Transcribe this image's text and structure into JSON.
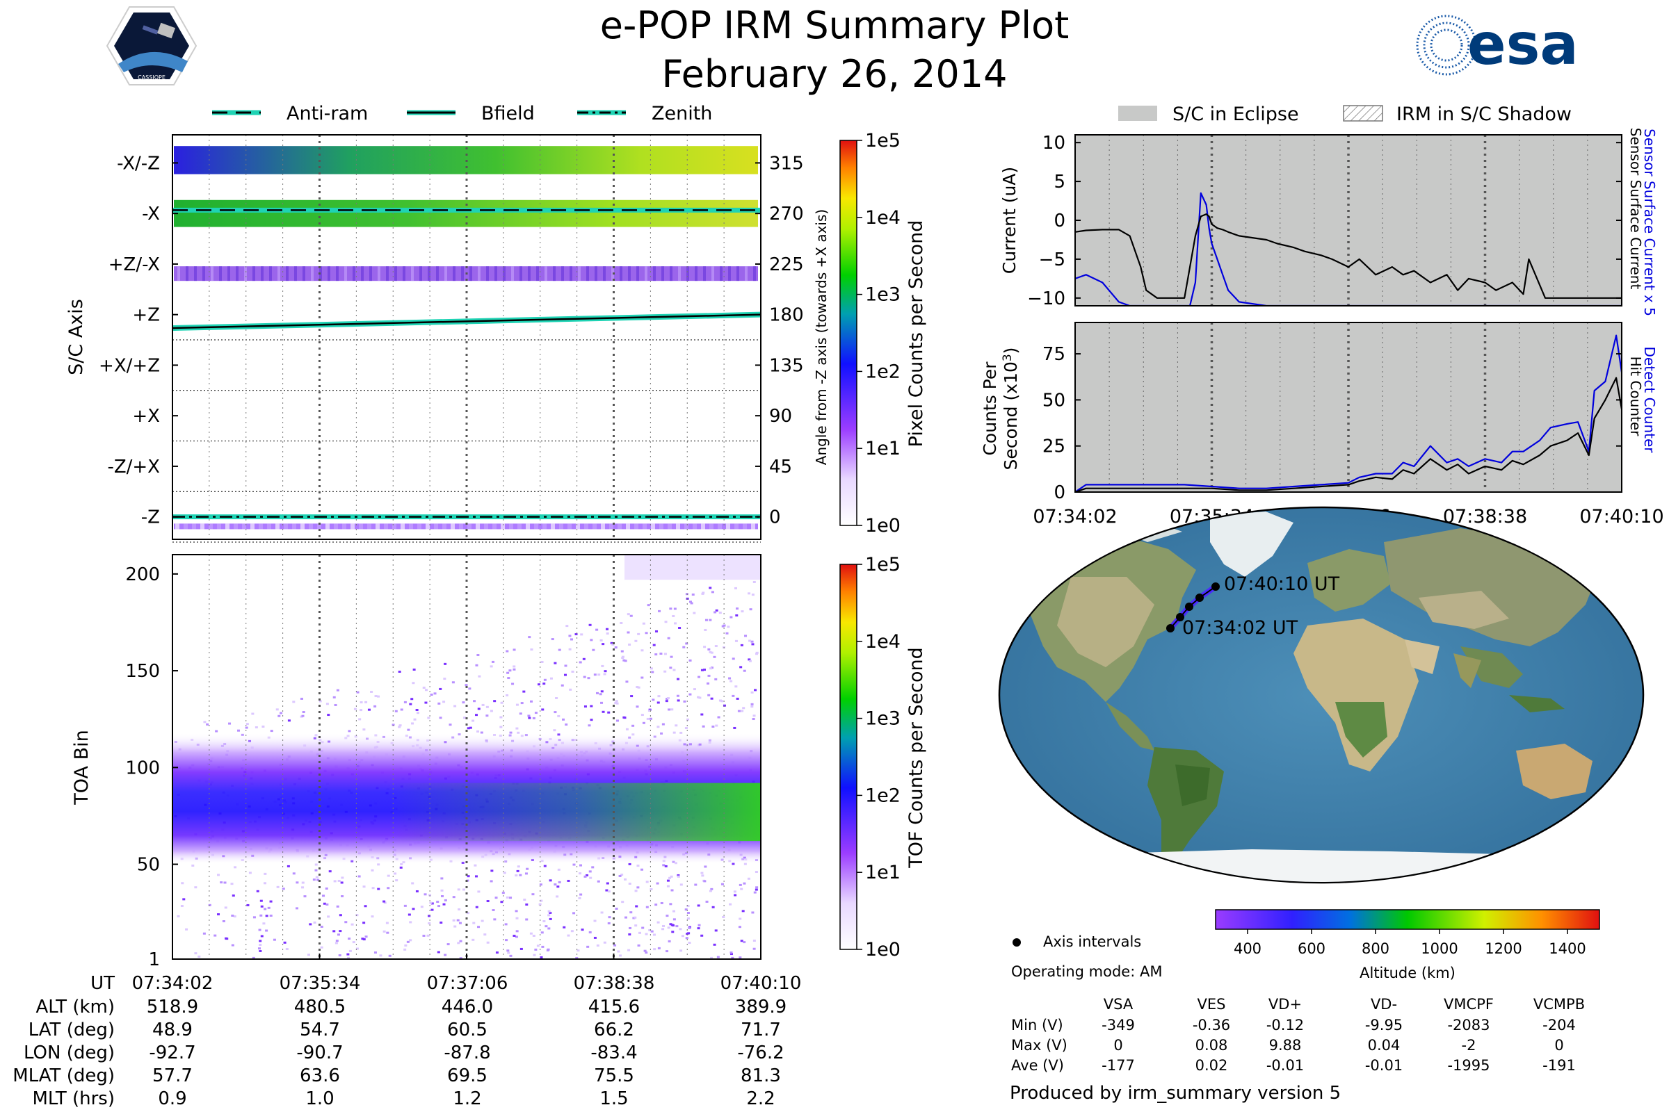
{
  "header": {
    "title": "e-POP IRM Summary Plot",
    "date": "February 26, 2014",
    "logo_left_text": "CASSIOPE",
    "logo_right_text": "esa"
  },
  "legend_top_left": [
    "Anti-ram",
    "Bfield",
    "Zenith"
  ],
  "legend_top_right": [
    "S/C in Eclipse",
    "IRM in S/C Shadow"
  ],
  "colors": {
    "teal": "#1fd3b4",
    "eclipse_gray": "#c8c9c8",
    "blue_line": "#0000dd",
    "ocean": "#3f7fa8"
  },
  "time_ticks": [
    "07:34:02",
    "07:35:34",
    "07:37:06",
    "07:38:38",
    "07:40:10"
  ],
  "chart_data": [
    {
      "type": "heatmap",
      "name": "pixel-spectrogram",
      "ylabel": "S/C Axis",
      "ylabel_right": "Angle from -Z axis (towards +X axis)",
      "axis_labels": [
        "-X/-Z",
        "-X",
        "+Z/-X",
        "+Z",
        "+X/+Z",
        "+X",
        "-Z/+X",
        "-Z"
      ],
      "angle_ticks": [
        "315",
        "270",
        "225",
        "180",
        "135",
        "90",
        "45",
        "0"
      ],
      "angle_values": [
        315,
        270,
        225,
        180,
        135,
        90,
        45,
        0
      ],
      "ylim": [
        -20,
        340
      ],
      "colorbar_label": "Pixel Counts per Second",
      "colorbar_ticks": [
        "1e5",
        "1e4",
        "1e3",
        "1e2",
        "1e1",
        "1e0"
      ],
      "bfield_line": {
        "start": 168,
        "end": 180
      }
    },
    {
      "type": "heatmap",
      "name": "tof-spectrogram",
      "ylabel": "TOA Bin",
      "ylim": [
        1,
        210
      ],
      "yticks": [
        "200",
        "150",
        "100",
        "50",
        "1"
      ],
      "ytick_values": [
        200,
        150,
        100,
        50,
        1
      ],
      "colorbar_label": "TOF Counts per Second",
      "colorbar_ticks": [
        "1e5",
        "1e4",
        "1e3",
        "1e2",
        "1e1",
        "1e0"
      ]
    },
    {
      "type": "line",
      "name": "current",
      "ylabel": "Current (uA)",
      "ylim": [
        -11,
        11
      ],
      "yticks": [
        "10",
        "5",
        "0",
        "−5",
        "−10"
      ],
      "ytick_values": [
        10,
        5,
        0,
        -5,
        -10
      ],
      "right_labels": [
        "Sensor Surface Current x 5",
        "Sensor Surface Current"
      ],
      "x": [
        0,
        0.02,
        0.05,
        0.08,
        0.1,
        0.12,
        0.13,
        0.15,
        0.2,
        0.21,
        0.22,
        0.23,
        0.24,
        0.245,
        0.25,
        0.26,
        0.27,
        0.28,
        0.3,
        0.35,
        0.37,
        0.4,
        0.42,
        0.45,
        0.47,
        0.5,
        0.52,
        0.55,
        0.58,
        0.6,
        0.62,
        0.65,
        0.68,
        0.7,
        0.72,
        0.75,
        0.77,
        0.8,
        0.82,
        0.83,
        0.86,
        0.9,
        0.95,
        1.0
      ],
      "series": [
        {
          "name": "Sensor Surface Current",
          "color": "#000000",
          "values": [
            -1.5,
            -1.3,
            -1.2,
            -1.2,
            -2.0,
            -6.0,
            -9.0,
            -10.0,
            -10.0,
            -6.0,
            -2.0,
            0.5,
            0.8,
            0.5,
            -0.5,
            -1.0,
            -1.2,
            -1.5,
            -2.0,
            -2.5,
            -3.0,
            -3.5,
            -4.0,
            -4.5,
            -5.0,
            -6.0,
            -5.0,
            -7.0,
            -6.0,
            -7.0,
            -6.5,
            -8.0,
            -7.0,
            -9.0,
            -7.5,
            -8.0,
            -9.0,
            -8.0,
            -9.5,
            -5.0,
            -10.0,
            -10.0,
            -10.0,
            -10.0
          ]
        },
        {
          "name": "Sensor Surface Current x 5",
          "color": "#0000dd",
          "values": [
            -7.5,
            -7.0,
            -8.0,
            -10.5,
            -11,
            -11,
            -11,
            -11,
            -11,
            -11,
            -8.0,
            3.5,
            2.0,
            -1.0,
            -3.0,
            -5.0,
            -7.0,
            -9.0,
            -10.5,
            -11,
            -11,
            -11,
            -11,
            -11,
            -11,
            -11,
            -11,
            -11,
            -11,
            -11,
            -11,
            -11,
            -11,
            -11,
            -11,
            -11,
            -11,
            -11,
            -11,
            -11,
            -11,
            -11,
            -11,
            -11
          ]
        }
      ]
    },
    {
      "type": "line",
      "name": "counts",
      "ylabel": "Counts Per Second (x10³)",
      "ylim": [
        0,
        92
      ],
      "yticks": [
        "75",
        "50",
        "25",
        "0"
      ],
      "ytick_values": [
        75,
        50,
        25,
        0
      ],
      "right_labels": [
        "Detect Counter",
        "Hit Counter"
      ],
      "x": [
        0,
        0.02,
        0.05,
        0.1,
        0.15,
        0.2,
        0.25,
        0.3,
        0.35,
        0.4,
        0.45,
        0.5,
        0.52,
        0.55,
        0.58,
        0.6,
        0.62,
        0.65,
        0.68,
        0.7,
        0.72,
        0.75,
        0.78,
        0.8,
        0.82,
        0.85,
        0.87,
        0.9,
        0.92,
        0.94,
        0.95,
        0.97,
        0.99,
        1.0
      ],
      "series": [
        {
          "name": "Hit Counter",
          "color": "#000000",
          "values": [
            0,
            2,
            2,
            2,
            2,
            2,
            2,
            1,
            1,
            2,
            3,
            4,
            6,
            8,
            7,
            12,
            10,
            18,
            12,
            15,
            10,
            14,
            12,
            17,
            15,
            20,
            25,
            28,
            32,
            20,
            40,
            50,
            62,
            45
          ]
        },
        {
          "name": "Detect Counter",
          "color": "#0000dd",
          "values": [
            0,
            4,
            4,
            4,
            4,
            4,
            3,
            2,
            2,
            3,
            4,
            5,
            8,
            10,
            10,
            16,
            14,
            25,
            16,
            18,
            14,
            18,
            16,
            22,
            22,
            28,
            35,
            37,
            38,
            22,
            55,
            60,
            85,
            65
          ]
        }
      ]
    },
    {
      "type": "line",
      "name": "altitude-colorbar",
      "xlabel": "Altitude (km)",
      "ticks": [
        "400",
        "600",
        "800",
        "1000",
        "1200",
        "1400"
      ],
      "tick_values": [
        400,
        600,
        800,
        1000,
        1200,
        1400
      ],
      "xlim": [
        300,
        1500
      ]
    }
  ],
  "map": {
    "start_label": "07:34:02 UT",
    "end_label": "07:40:10 UT"
  },
  "ephemeris": {
    "header_label": "UT",
    "rows": [
      {
        "label": "ALT (km)",
        "values": [
          "518.9",
          "480.5",
          "446.0",
          "415.6",
          "389.9"
        ]
      },
      {
        "label": "LAT (deg)",
        "values": [
          "48.9",
          "54.7",
          "60.5",
          "66.2",
          "71.7"
        ]
      },
      {
        "label": "LON (deg)",
        "values": [
          "-92.7",
          "-90.7",
          "-87.8",
          "-83.4",
          "-76.2"
        ]
      },
      {
        "label": "MLAT (deg)",
        "values": [
          "57.7",
          "63.6",
          "69.5",
          "75.5",
          "81.3"
        ]
      },
      {
        "label": "MLT (hrs)",
        "values": [
          "0.9",
          "1.0",
          "1.2",
          "1.5",
          "2.2"
        ]
      }
    ]
  },
  "info": {
    "axis_intervals": "Axis intervals",
    "operating_mode": "Operating mode: AM",
    "voltage_headers": [
      "VSA",
      "VES",
      "VD+",
      "VD-",
      "VMCPF",
      "VCMPB"
    ],
    "voltage_rows": [
      {
        "label": "Min (V)",
        "values": [
          "-349",
          "-0.36",
          "-0.12",
          "-9.95",
          "-2083",
          "-204"
        ]
      },
      {
        "label": "Max (V)",
        "values": [
          "0",
          "0.08",
          "9.88",
          "0.04",
          "-2",
          "0"
        ]
      },
      {
        "label": "Ave (V)",
        "values": [
          "-177",
          "0.02",
          "-0.01",
          "-0.01",
          "-1995",
          "-191"
        ]
      }
    ],
    "produced_by": "Produced by irm_summary version 5"
  }
}
